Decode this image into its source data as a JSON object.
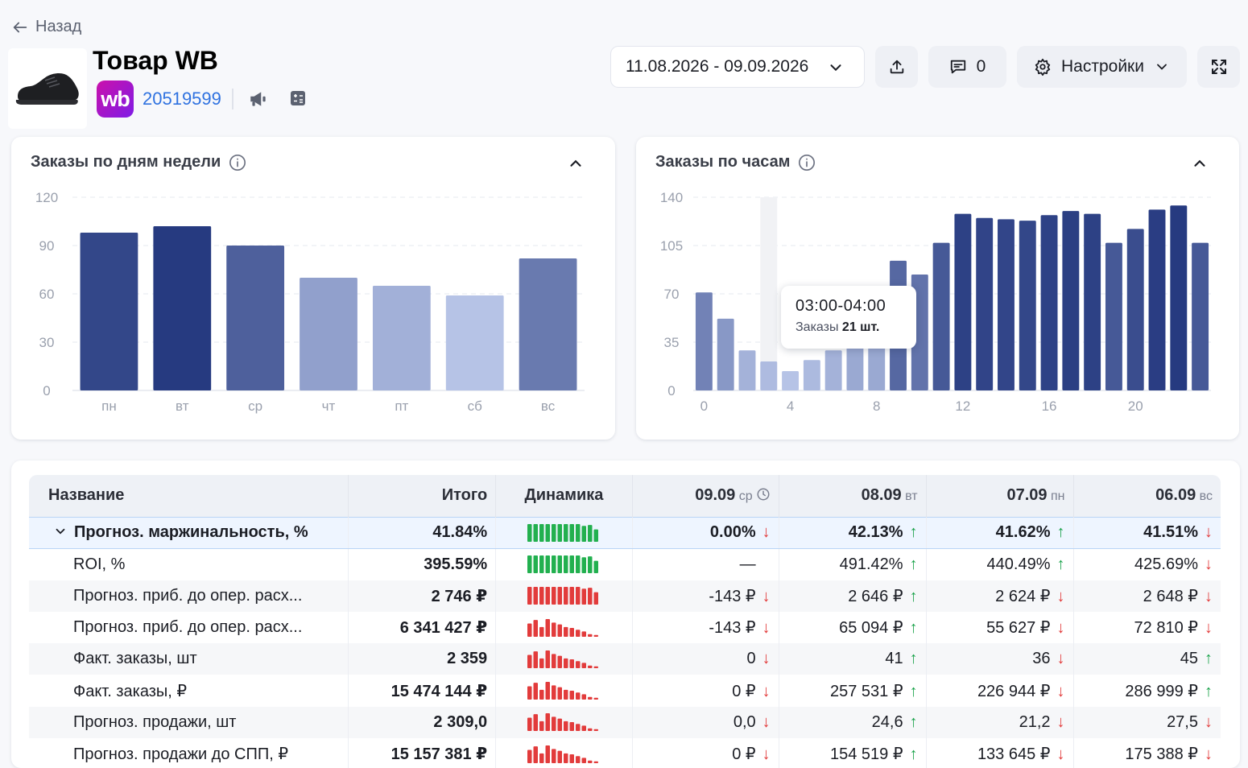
{
  "nav": {
    "back_label": "Назад"
  },
  "product": {
    "title": "Товар WB",
    "marketplace": "wb",
    "article": "20519599",
    "image": "shoe"
  },
  "toolbar": {
    "date_range": "11.08.2026 - 09.09.2026",
    "comments_count": "0",
    "settings_label": "Настройки"
  },
  "colors": {
    "bar_dark": "#263a80",
    "bar_light": "#b6c3e6",
    "up": "#1aa24a",
    "down": "#e23b3b",
    "link": "#2f72e0"
  },
  "charts": {
    "weekday": {
      "title": "Заказы по дням недели"
    },
    "hourly": {
      "title": "Заказы по часам",
      "tooltip": {
        "time": "03:00-04:00",
        "label": "Заказы",
        "value": "21 шт."
      }
    }
  },
  "chart_data": [
    {
      "type": "bar",
      "title": "Заказы по дням недели",
      "categories": [
        "пн",
        "вт",
        "ср",
        "чт",
        "пт",
        "сб",
        "вс"
      ],
      "values": [
        98,
        102,
        90,
        70,
        65,
        59,
        82
      ],
      "ylim": [
        0,
        120
      ],
      "yticks": [
        0,
        30,
        60,
        90,
        120
      ],
      "grid": true
    },
    {
      "type": "bar",
      "title": "Заказы по часам",
      "x": [
        0,
        1,
        2,
        3,
        4,
        5,
        6,
        7,
        8,
        9,
        10,
        11,
        12,
        13,
        14,
        15,
        16,
        17,
        18,
        19,
        20,
        21,
        22,
        23
      ],
      "xticks": [
        0,
        4,
        8,
        12,
        16,
        20
      ],
      "values": [
        71,
        52,
        29,
        21,
        14,
        22,
        29,
        37,
        37,
        94,
        84,
        107,
        128,
        125,
        124,
        123,
        127,
        130,
        128,
        107,
        117,
        131,
        134,
        107
      ],
      "ylim": [
        0,
        140
      ],
      "yticks": [
        0,
        35,
        70,
        105,
        140
      ],
      "highlight_index": 3,
      "grid": true
    }
  ],
  "table": {
    "headers": [
      {
        "label": "Название"
      },
      {
        "label": "Итого"
      },
      {
        "label": "Динамика"
      },
      {
        "label": "09.09",
        "sub": "ср",
        "clock": true
      },
      {
        "label": "08.09",
        "sub": "вт"
      },
      {
        "label": "07.09",
        "sub": "пн"
      },
      {
        "label": "06.09",
        "sub": "вс"
      }
    ],
    "rows": [
      {
        "name": "Прогноз. маржинальность, %",
        "total": "41.84%",
        "spark": "full-green",
        "expanded": true,
        "cells": [
          {
            "v": "0.00%",
            "d": "down"
          },
          {
            "v": "42.13%",
            "d": "up"
          },
          {
            "v": "41.62%",
            "d": "up"
          },
          {
            "v": "41.51%",
            "d": "down"
          }
        ]
      },
      {
        "name": "ROI, %",
        "total": "395.59%",
        "spark": "full-green",
        "cells": [
          {
            "v": "—",
            "d": ""
          },
          {
            "v": "491.42%",
            "d": "up"
          },
          {
            "v": "440.49%",
            "d": "up"
          },
          {
            "v": "425.69%",
            "d": "down"
          }
        ]
      },
      {
        "name": "Прогноз. приб. до опер. расх...",
        "total": "2 746 ₽",
        "spark": "full-red",
        "cells": [
          {
            "v": "-143 ₽",
            "d": "down"
          },
          {
            "v": "2 646 ₽",
            "d": "up"
          },
          {
            "v": "2 624 ₽",
            "d": "down"
          },
          {
            "v": "2 648 ₽",
            "d": "down"
          }
        ]
      },
      {
        "name": "Прогноз. приб. до опер. расх...",
        "total": "6 341 427 ₽",
        "spark": "mixed-red",
        "cells": [
          {
            "v": "-143 ₽",
            "d": "down"
          },
          {
            "v": "65 094 ₽",
            "d": "up"
          },
          {
            "v": "55 627 ₽",
            "d": "down"
          },
          {
            "v": "72 810 ₽",
            "d": "down"
          }
        ]
      },
      {
        "name": "Факт. заказы, шт",
        "total": "2 359",
        "spark": "mixed-red",
        "cells": [
          {
            "v": "0",
            "d": "down"
          },
          {
            "v": "41",
            "d": "up"
          },
          {
            "v": "36",
            "d": "down"
          },
          {
            "v": "45",
            "d": "up"
          }
        ]
      },
      {
        "name": "Факт. заказы, ₽",
        "total": "15 474 144 ₽",
        "spark": "mixed-red",
        "cells": [
          {
            "v": "0 ₽",
            "d": "down"
          },
          {
            "v": "257 531 ₽",
            "d": "up"
          },
          {
            "v": "226 944 ₽",
            "d": "down"
          },
          {
            "v": "286 999 ₽",
            "d": "up"
          }
        ]
      },
      {
        "name": "Прогноз. продажи, шт",
        "total": "2 309,0",
        "spark": "mixed-red",
        "cells": [
          {
            "v": "0,0",
            "d": "down"
          },
          {
            "v": "24,6",
            "d": "up"
          },
          {
            "v": "21,2",
            "d": "down"
          },
          {
            "v": "27,5",
            "d": "down"
          }
        ]
      },
      {
        "name": "Прогноз. продажи до СПП, ₽",
        "total": "15 157 381 ₽",
        "spark": "mixed-red",
        "cells": [
          {
            "v": "0 ₽",
            "d": "down"
          },
          {
            "v": "154 519 ₽",
            "d": "up"
          },
          {
            "v": "133 645 ₽",
            "d": "down"
          },
          {
            "v": "175 388 ₽",
            "d": "down"
          }
        ]
      }
    ]
  }
}
